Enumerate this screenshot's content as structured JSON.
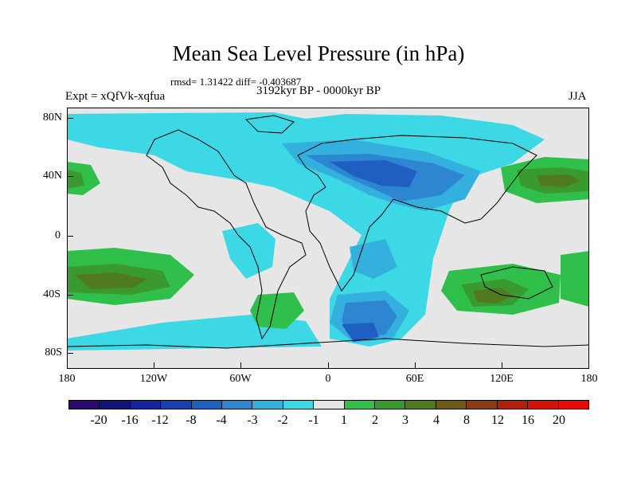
{
  "title": "Mean Sea Level Pressure (in hPa)",
  "stats": "rmsd= 1.31422 diff= -0.403687",
  "experiment": "Expt = xQfVk-xqfua",
  "period": "3192kyr BP - 0000kyr BP",
  "season": "JJA",
  "lat_labels": [
    "80N",
    "40N",
    "0",
    "40S",
    "80S"
  ],
  "lon_labels": [
    "180",
    "120W",
    "60W",
    "0",
    "60E",
    "120E",
    "180"
  ],
  "colorbar": {
    "labels": [
      "-20",
      "-16",
      "-12",
      "-8",
      "-4",
      "-3",
      "-2",
      "-1",
      "1",
      "2",
      "3",
      "4",
      "8",
      "12",
      "16",
      "20"
    ],
    "colors": [
      "#2a0a6e",
      "#14147e",
      "#14249a",
      "#1a40b0",
      "#1f5fc2",
      "#2e86d2",
      "#34b0de",
      "#3cd8e6",
      "#e6e6e6",
      "#2fbf4a",
      "#3a9a30",
      "#4f7a20",
      "#6e5a18",
      "#8c3a12",
      "#b0200c",
      "#d21408",
      "#e60c0c"
    ]
  },
  "colors": {
    "land_background": "#e6e6e6",
    "neg_1": "#3cd8e6",
    "neg_2": "#34b0de",
    "neg_3": "#2e86d2",
    "neg_4": "#1f5fc2",
    "neg_5": "#1a40b0",
    "pos_1": "#2fbf4a",
    "pos_2": "#3a9a30",
    "pos_3": "#4f7a20"
  }
}
